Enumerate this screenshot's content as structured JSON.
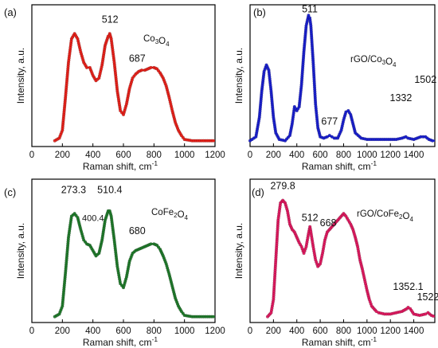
{
  "chart_data": [
    {
      "type": "scatter",
      "panel_label": "(a)",
      "compound": "Co3O4",
      "color": "#e8201a",
      "xlabel": "Raman shift, cm",
      "xlabel_sup": "-1",
      "ylabel": "Intensity, a.u.",
      "xlim": [
        0,
        1200
      ],
      "ylim": [
        0,
        1
      ],
      "xticks": [
        0,
        200,
        400,
        600,
        800,
        1000,
        1200
      ],
      "annotations": [
        {
          "text": "512",
          "x": 512,
          "y": 0.9
        },
        {
          "text": "687",
          "x": 690,
          "y": 0.6
        }
      ],
      "series": [
        {
          "x": [
            150,
            180,
            200,
            220,
            240,
            260,
            280,
            300,
            320,
            340,
            360,
            380,
            400,
            420,
            440,
            460,
            480,
            500,
            510,
            520,
            540,
            560,
            580,
            600,
            620,
            640,
            660,
            680,
            700,
            720,
            740,
            760,
            780,
            800,
            820,
            840,
            860,
            880,
            900,
            920,
            940,
            960,
            980,
            1000,
            1050,
            1100,
            1150,
            1200
          ],
          "y": [
            0.02,
            0.04,
            0.1,
            0.35,
            0.62,
            0.8,
            0.84,
            0.8,
            0.7,
            0.62,
            0.58,
            0.58,
            0.52,
            0.48,
            0.5,
            0.6,
            0.75,
            0.82,
            0.84,
            0.8,
            0.62,
            0.4,
            0.25,
            0.22,
            0.3,
            0.42,
            0.5,
            0.53,
            0.55,
            0.56,
            0.56,
            0.57,
            0.58,
            0.58,
            0.57,
            0.54,
            0.5,
            0.44,
            0.35,
            0.25,
            0.16,
            0.1,
            0.06,
            0.03,
            0.02,
            0.02,
            0.02,
            0.02
          ]
        }
      ]
    },
    {
      "type": "scatter",
      "panel_label": "(b)",
      "compound": "rGO/Co3O4",
      "color": "#1a1fcf",
      "xlabel": "Raman shift, cm",
      "xlabel_sup": "-1",
      "ylabel": "Intensity, a.u.",
      "xlim": [
        0,
        1580
      ],
      "ylim": [
        0,
        1
      ],
      "xticks": [
        0,
        200,
        400,
        600,
        800,
        1000,
        1200,
        1400
      ],
      "annotations": [
        {
          "text": "511",
          "x": 511,
          "y": 0.98
        },
        {
          "text": "677",
          "x": 680,
          "y": 0.12
        },
        {
          "text": "1332",
          "x": 1290,
          "y": 0.3
        },
        {
          "text": "1502",
          "x": 1500,
          "y": 0.44
        }
      ],
      "series": [
        {
          "x": [
            0,
            50,
            80,
            100,
            120,
            140,
            160,
            180,
            200,
            220,
            250,
            300,
            340,
            360,
            380,
            400,
            420,
            440,
            460,
            480,
            500,
            511,
            520,
            540,
            560,
            580,
            600,
            630,
            660,
            680,
            700,
            720,
            750,
            780,
            800,
            820,
            840,
            860,
            880,
            900,
            950,
            1000,
            1050,
            1100,
            1150,
            1200,
            1250,
            1300,
            1332,
            1350,
            1400,
            1430,
            1460,
            1500,
            1530,
            1560,
            1580
          ],
          "y": [
            0.02,
            0.05,
            0.2,
            0.4,
            0.55,
            0.6,
            0.56,
            0.4,
            0.2,
            0.08,
            0.03,
            0.02,
            0.06,
            0.15,
            0.28,
            0.25,
            0.28,
            0.45,
            0.7,
            0.9,
            0.98,
            0.96,
            0.9,
            0.62,
            0.3,
            0.12,
            0.05,
            0.04,
            0.05,
            0.06,
            0.05,
            0.04,
            0.04,
            0.1,
            0.18,
            0.24,
            0.25,
            0.22,
            0.15,
            0.08,
            0.04,
            0.03,
            0.03,
            0.03,
            0.03,
            0.03,
            0.03,
            0.04,
            0.05,
            0.04,
            0.03,
            0.04,
            0.05,
            0.05,
            0.03,
            0.02,
            0.02
          ]
        }
      ]
    },
    {
      "type": "scatter",
      "panel_label": "(c)",
      "compound": "CoFe2O4",
      "color": "#1f7a2a",
      "xlabel": "Raman shift, cm",
      "xlabel_sup": "-1",
      "ylabel": "Intensity, a.u.",
      "xlim": [
        0,
        1200
      ],
      "ylim": [
        0,
        1
      ],
      "xticks": [
        0,
        200,
        400,
        600,
        800,
        1000,
        1200
      ],
      "annotations": [
        {
          "text": "273.3",
          "x": 273.3,
          "y": 0.93
        },
        {
          "text": "400.4",
          "x": 400.4,
          "y": 0.72
        },
        {
          "text": "510.4",
          "x": 510.4,
          "y": 0.93
        },
        {
          "text": "680",
          "x": 690,
          "y": 0.62
        }
      ],
      "series": [
        {
          "x": [
            150,
            180,
            200,
            220,
            240,
            260,
            280,
            300,
            320,
            340,
            360,
            380,
            400,
            420,
            440,
            460,
            480,
            500,
            510,
            520,
            540,
            560,
            580,
            600,
            620,
            640,
            660,
            680,
            700,
            720,
            740,
            760,
            780,
            800,
            820,
            840,
            860,
            880,
            900,
            920,
            940,
            960,
            980,
            1000,
            1050,
            1100,
            1150,
            1200
          ],
          "y": [
            0.02,
            0.04,
            0.1,
            0.35,
            0.62,
            0.78,
            0.8,
            0.77,
            0.68,
            0.6,
            0.57,
            0.56,
            0.52,
            0.48,
            0.5,
            0.6,
            0.75,
            0.82,
            0.82,
            0.78,
            0.6,
            0.4,
            0.27,
            0.24,
            0.32,
            0.44,
            0.5,
            0.52,
            0.53,
            0.54,
            0.55,
            0.56,
            0.57,
            0.57,
            0.56,
            0.53,
            0.48,
            0.42,
            0.34,
            0.25,
            0.16,
            0.1,
            0.06,
            0.03,
            0.02,
            0.02,
            0.02,
            0.02
          ]
        }
      ]
    },
    {
      "type": "scatter",
      "panel_label": "(d)",
      "compound": "rGO/CoFe2O4",
      "color": "#e0185f",
      "xlabel": "Raman shift, cm",
      "xlabel_sup": "-1",
      "ylabel": "Intensity, a.u.",
      "xlim": [
        0,
        1580
      ],
      "ylim": [
        0,
        1
      ],
      "xticks": [
        0,
        200,
        400,
        600,
        800,
        1000,
        1200,
        1400
      ],
      "annotations": [
        {
          "text": "279.8",
          "x": 279.8,
          "y": 0.96
        },
        {
          "text": "512",
          "x": 512,
          "y": 0.72
        },
        {
          "text": "668",
          "x": 668,
          "y": 0.68
        },
        {
          "text": "1352.1",
          "x": 1352.1,
          "y": 0.2
        },
        {
          "text": "1522",
          "x": 1522,
          "y": 0.12
        }
      ],
      "series": [
        {
          "x": [
            150,
            180,
            200,
            220,
            240,
            260,
            280,
            300,
            320,
            340,
            360,
            380,
            400,
            420,
            440,
            460,
            480,
            500,
            512,
            520,
            540,
            560,
            580,
            600,
            620,
            640,
            660,
            680,
            700,
            720,
            740,
            760,
            780,
            800,
            820,
            840,
            860,
            880,
            900,
            920,
            940,
            960,
            980,
            1000,
            1020,
            1040,
            1060,
            1080,
            1100,
            1150,
            1200,
            1250,
            1300,
            1340,
            1352,
            1370,
            1400,
            1450,
            1500,
            1522,
            1550,
            1580
          ],
          "y": [
            0.02,
            0.05,
            0.15,
            0.45,
            0.75,
            0.88,
            0.9,
            0.88,
            0.82,
            0.72,
            0.68,
            0.66,
            0.62,
            0.58,
            0.55,
            0.5,
            0.55,
            0.65,
            0.7,
            0.66,
            0.55,
            0.45,
            0.4,
            0.42,
            0.5,
            0.6,
            0.66,
            0.68,
            0.7,
            0.72,
            0.74,
            0.76,
            0.78,
            0.8,
            0.78,
            0.75,
            0.72,
            0.68,
            0.62,
            0.55,
            0.45,
            0.38,
            0.3,
            0.22,
            0.15,
            0.1,
            0.08,
            0.06,
            0.05,
            0.04,
            0.04,
            0.05,
            0.06,
            0.08,
            0.09,
            0.08,
            0.04,
            0.03,
            0.04,
            0.05,
            0.03,
            0.02
          ]
        }
      ]
    }
  ]
}
